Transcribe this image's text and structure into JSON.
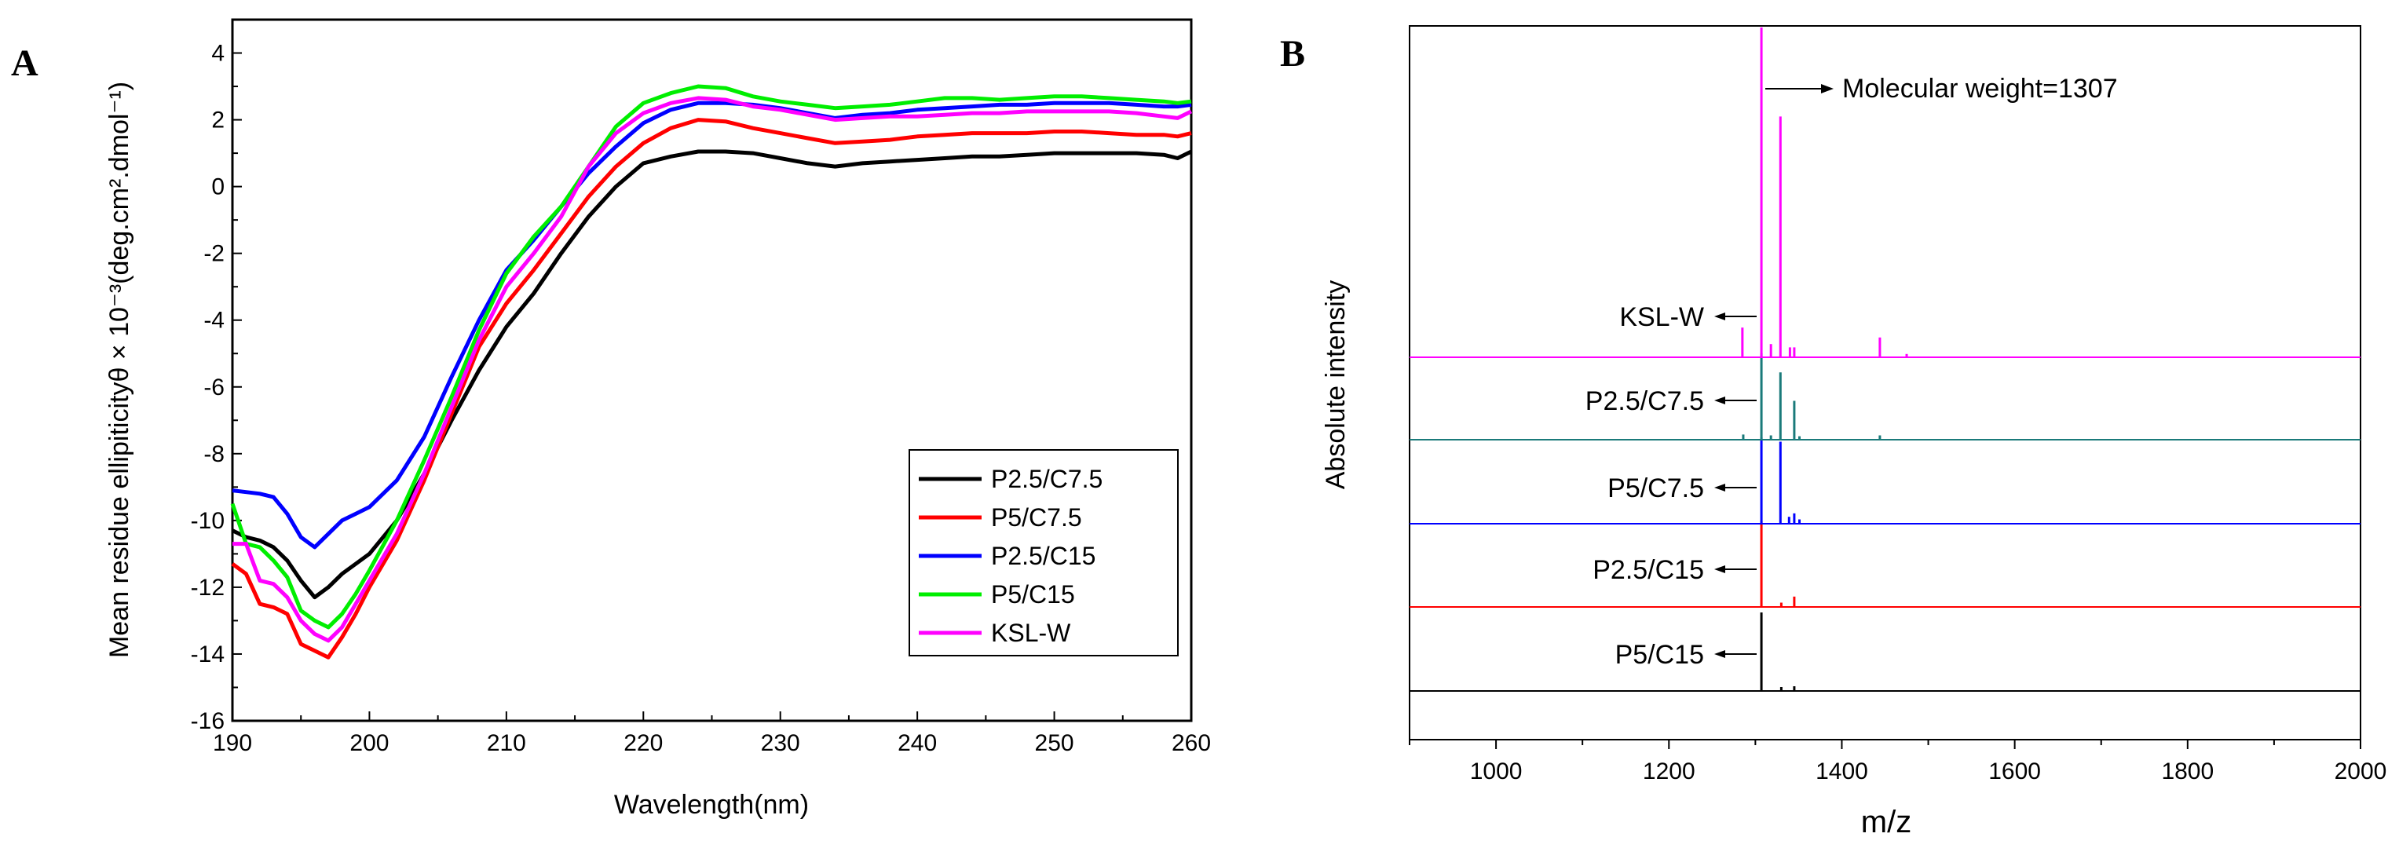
{
  "chart_data": [
    {
      "panel": "A",
      "type": "line",
      "xlabel": "Wavelength(nm)",
      "ylabel": "Mean residue ellipiticityθ × 10⁻³(deg.cm².dmol⁻¹)",
      "xlim": [
        190,
        260
      ],
      "ylim": [
        -16,
        5
      ],
      "xticks": [
        190,
        200,
        210,
        220,
        230,
        240,
        250,
        260
      ],
      "yticks": [
        -16,
        -14,
        -12,
        -10,
        -8,
        -6,
        -4,
        -2,
        0,
        2,
        4
      ],
      "legend_position": "bottom-right",
      "x": [
        190,
        191,
        192,
        193,
        194,
        195,
        196,
        197,
        198,
        199,
        200,
        202,
        204,
        206,
        208,
        210,
        212,
        214,
        216,
        218,
        220,
        222,
        224,
        226,
        228,
        230,
        232,
        234,
        236,
        238,
        240,
        242,
        244,
        246,
        248,
        250,
        252,
        254,
        256,
        258,
        259,
        260
      ],
      "series": [
        {
          "name": "P2.5/C7.5",
          "color": "#000000",
          "values": [
            -10.3,
            -10.5,
            -10.6,
            -10.8,
            -11.2,
            -11.8,
            -12.3,
            -12.0,
            -11.6,
            -11.3,
            -11.0,
            -10.0,
            -8.6,
            -7.0,
            -5.5,
            -4.2,
            -3.2,
            -2.0,
            -0.9,
            0.0,
            0.7,
            0.9,
            1.05,
            1.05,
            1.0,
            0.85,
            0.7,
            0.6,
            0.7,
            0.75,
            0.8,
            0.85,
            0.9,
            0.9,
            0.95,
            1.0,
            1.0,
            1.0,
            1.0,
            0.95,
            0.85,
            1.05
          ]
        },
        {
          "name": "P5/C7.5",
          "color": "#ff0000",
          "values": [
            -11.3,
            -11.6,
            -12.5,
            -12.6,
            -12.8,
            -13.7,
            -13.9,
            -14.1,
            -13.5,
            -12.8,
            -12.0,
            -10.6,
            -8.8,
            -6.8,
            -4.8,
            -3.5,
            -2.5,
            -1.4,
            -0.3,
            0.6,
            1.3,
            1.75,
            2.0,
            1.95,
            1.75,
            1.6,
            1.45,
            1.3,
            1.35,
            1.4,
            1.5,
            1.55,
            1.6,
            1.6,
            1.6,
            1.65,
            1.65,
            1.6,
            1.55,
            1.55,
            1.5,
            1.6
          ]
        },
        {
          "name": "P2.5/C15",
          "color": "#0000ff",
          "values": [
            -9.1,
            -9.15,
            -9.2,
            -9.3,
            -9.8,
            -10.5,
            -10.8,
            -10.4,
            -10.0,
            -9.8,
            -9.6,
            -8.8,
            -7.5,
            -5.7,
            -4.0,
            -2.5,
            -1.6,
            -0.6,
            0.4,
            1.2,
            1.9,
            2.3,
            2.5,
            2.5,
            2.45,
            2.35,
            2.2,
            2.05,
            2.15,
            2.2,
            2.3,
            2.35,
            2.4,
            2.45,
            2.45,
            2.5,
            2.5,
            2.5,
            2.45,
            2.4,
            2.4,
            2.45
          ]
        },
        {
          "name": "P5/C15",
          "color": "#00ee00",
          "values": [
            -9.5,
            -10.7,
            -10.8,
            -11.2,
            -11.7,
            -12.7,
            -13.0,
            -13.2,
            -12.8,
            -12.2,
            -11.5,
            -10.0,
            -8.2,
            -6.3,
            -4.3,
            -2.6,
            -1.5,
            -0.6,
            0.6,
            1.8,
            2.5,
            2.8,
            3.0,
            2.95,
            2.7,
            2.55,
            2.45,
            2.35,
            2.4,
            2.45,
            2.55,
            2.65,
            2.65,
            2.6,
            2.65,
            2.7,
            2.7,
            2.65,
            2.6,
            2.55,
            2.5,
            2.55
          ]
        },
        {
          "name": "KSL-W",
          "color": "#ff00ff",
          "values": [
            -10.7,
            -10.7,
            -11.8,
            -11.9,
            -12.3,
            -13.0,
            -13.4,
            -13.6,
            -13.2,
            -12.5,
            -11.8,
            -10.4,
            -8.6,
            -6.6,
            -4.6,
            -3.0,
            -2.0,
            -0.9,
            0.6,
            1.6,
            2.2,
            2.5,
            2.65,
            2.6,
            2.4,
            2.3,
            2.15,
            2.0,
            2.05,
            2.1,
            2.1,
            2.15,
            2.2,
            2.2,
            2.25,
            2.25,
            2.25,
            2.25,
            2.2,
            2.1,
            2.05,
            2.25
          ]
        }
      ]
    },
    {
      "panel": "B",
      "type": "line",
      "xlabel": "m/z",
      "ylabel": "Absolute intensity",
      "xlim": [
        900,
        2000
      ],
      "xticks": [
        1000,
        1200,
        1400,
        1600,
        1800,
        2000
      ],
      "annotation": "Molecular weight=1307",
      "main_peak_mz": 1307,
      "traces": [
        {
          "name": "P5/C15",
          "color": "#000000",
          "peaks": [
            {
              "mz": 1307,
              "rel": 1.0
            },
            {
              "mz": 1330,
              "rel": 0.05
            },
            {
              "mz": 1345,
              "rel": 0.06
            }
          ]
        },
        {
          "name": "P2.5/C15",
          "color": "#ff0000",
          "peaks": [
            {
              "mz": 1307,
              "rel": 1.0
            },
            {
              "mz": 1330,
              "rel": 0.05
            },
            {
              "mz": 1345,
              "rel": 0.12
            }
          ]
        },
        {
          "name": "P5/C7.5",
          "color": "#0000ff",
          "peaks": [
            {
              "mz": 1307,
              "rel": 1.0
            },
            {
              "mz": 1329,
              "rel": 0.95
            },
            {
              "mz": 1339,
              "rel": 0.08
            },
            {
              "mz": 1345,
              "rel": 0.12
            },
            {
              "mz": 1351,
              "rel": 0.05
            }
          ]
        },
        {
          "name": "P2.5/C7.5",
          "color": "#1a7a7a",
          "peaks": [
            {
              "mz": 1286,
              "rel": 0.06
            },
            {
              "mz": 1307,
              "rel": 1.0
            },
            {
              "mz": 1318,
              "rel": 0.05
            },
            {
              "mz": 1329,
              "rel": 0.78
            },
            {
              "mz": 1345,
              "rel": 0.45
            },
            {
              "mz": 1351,
              "rel": 0.04
            },
            {
              "mz": 1444,
              "rel": 0.05
            }
          ]
        },
        {
          "name": "KSL-W",
          "color": "#ff00ff",
          "peaks": [
            {
              "mz": 1285,
              "rel": 0.09
            },
            {
              "mz": 1307,
              "rel": 1.0
            },
            {
              "mz": 1318,
              "rel": 0.04
            },
            {
              "mz": 1329,
              "rel": 0.73
            },
            {
              "mz": 1340,
              "rel": 0.03
            },
            {
              "mz": 1345,
              "rel": 0.03
            },
            {
              "mz": 1444,
              "rel": 0.06
            },
            {
              "mz": 1475,
              "rel": 0.01
            }
          ]
        }
      ]
    }
  ],
  "labels": {
    "panel_a": "A",
    "panel_b": "B"
  }
}
